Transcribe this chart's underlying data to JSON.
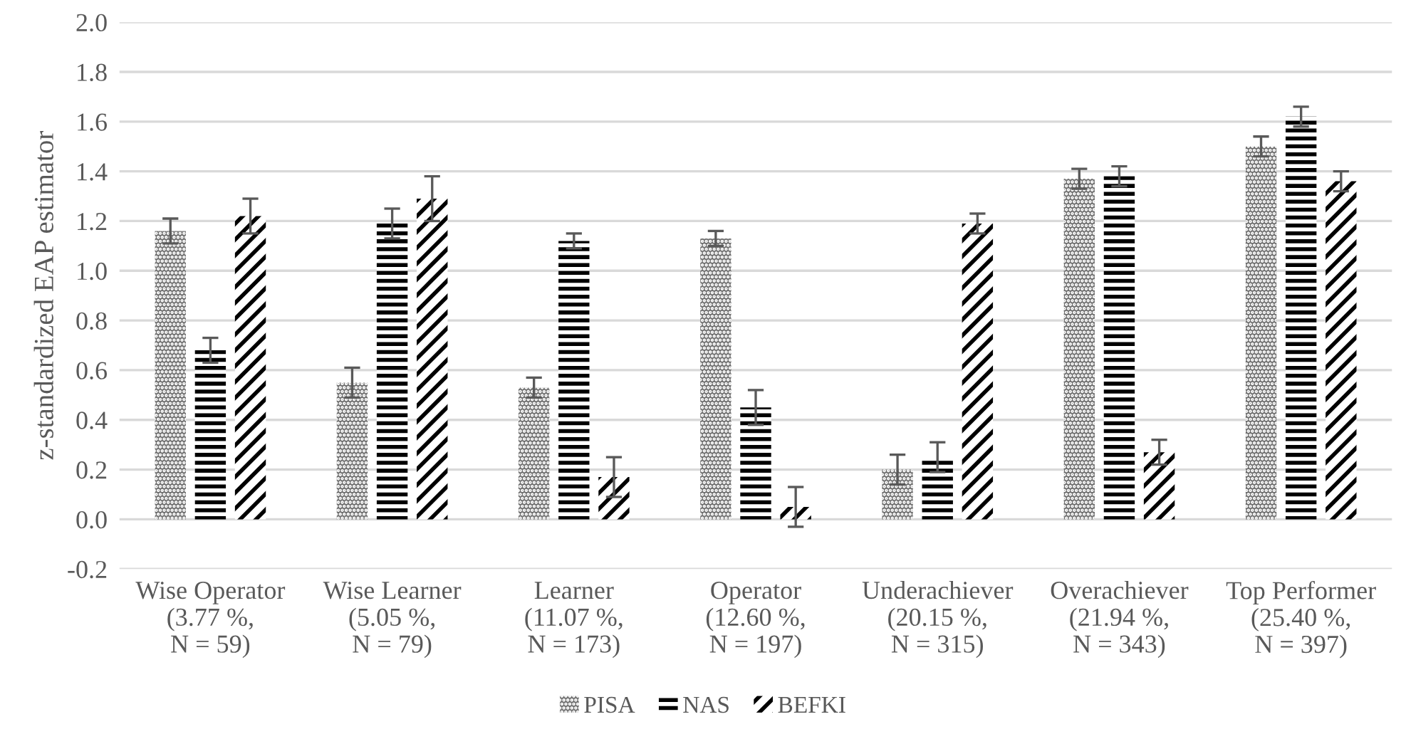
{
  "chart_data": {
    "type": "bar",
    "ylabel": "z-standardized EAP estimator",
    "categories": [
      "Wise Operator\n(3.77 %,\nN = 59)",
      "Wise Learner\n(5.05 %,\nN = 79)",
      "Learner\n(11.07 %,\nN = 173)",
      "Operator\n(12.60 %,\nN = 197)",
      "Underachiever\n(20.15 %,\nN = 315)",
      "Overachiever\n(21.94 %,\nN = 343)",
      "Top Performer\n(25.40 %,\nN = 397)"
    ],
    "series": [
      {
        "name": "PISA",
        "color": "#6e6e6e",
        "values": [
          1.16,
          0.55,
          0.53,
          1.13,
          0.2,
          1.37,
          1.5
        ],
        "errors": [
          0.05,
          0.06,
          0.04,
          0.03,
          0.06,
          0.04,
          0.04
        ]
      },
      {
        "name": "NAS",
        "color": "#000000",
        "values": [
          0.68,
          1.19,
          1.12,
          0.45,
          0.25,
          1.38,
          1.62
        ],
        "errors": [
          0.05,
          0.06,
          0.03,
          0.07,
          0.06,
          0.04,
          0.04
        ]
      },
      {
        "name": "BEFKI",
        "color": "#000000",
        "values": [
          1.22,
          1.29,
          0.17,
          0.05,
          1.19,
          0.27,
          1.36
        ],
        "errors": [
          0.07,
          0.09,
          0.08,
          0.08,
          0.04,
          0.05,
          0.04
        ]
      }
    ],
    "ylim": [
      -0.2,
      2.0
    ],
    "yticks": [
      {
        "value": -0.2,
        "label": "-0.2"
      },
      {
        "value": 0.0,
        "label": "0.0"
      },
      {
        "value": 0.2,
        "label": "0.2"
      },
      {
        "value": 0.4,
        "label": "0.4"
      },
      {
        "value": 0.6,
        "label": "0.6"
      },
      {
        "value": 0.8,
        "label": "0.8"
      },
      {
        "value": 1.0,
        "label": "1.0"
      },
      {
        "value": 1.2,
        "label": "1.2"
      },
      {
        "value": 1.4,
        "label": "1.4"
      },
      {
        "value": 1.6,
        "label": "1.6"
      },
      {
        "value": 1.8,
        "label": "1.8"
      },
      {
        "value": 2.0,
        "label": "2.0"
      }
    ],
    "grid": "y",
    "legend": "bottom"
  }
}
